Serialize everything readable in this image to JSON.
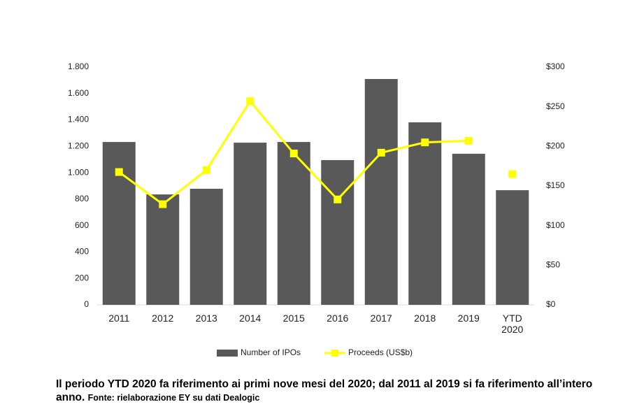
{
  "chart_data": {
    "type": "bar_line",
    "categories": [
      "2011",
      "2012",
      "2013",
      "2014",
      "2015",
      "2016",
      "2017",
      "2018",
      "2019",
      "YTD 2020"
    ],
    "series": [
      {
        "name": "Number of IPOs",
        "type": "bar",
        "color": "#595959",
        "values": [
          1233,
          836,
          879,
          1228,
          1233,
          1096,
          1710,
          1382,
          1144,
          868
        ]
      },
      {
        "name": "Proceeds (US$b)",
        "type": "line",
        "axis": "y2",
        "color": "#ffff00",
        "connect_last": false,
        "values": [
          167.6,
          127,
          170,
          257,
          191,
          133,
          192,
          205,
          207,
          165
        ]
      }
    ],
    "ylim": [
      0,
      1800
    ],
    "yticks": [
      0,
      200,
      400,
      600,
      800,
      {
        "value": 1000,
        "label": "1.000"
      },
      {
        "value": 1200,
        "label": "1.200"
      },
      {
        "value": 1400,
        "label": "1.400"
      },
      {
        "value": 1600,
        "label": "1.600"
      },
      {
        "value": 1800,
        "label": "1.800"
      }
    ],
    "y2lim": [
      0,
      300
    ],
    "y2ticks": [
      {
        "value": 0,
        "label": "$0"
      },
      {
        "value": 50,
        "label": "$50"
      },
      {
        "value": 100,
        "label": "$100"
      },
      {
        "value": 150,
        "label": "$150"
      },
      {
        "value": 200,
        "label": "$200"
      },
      {
        "value": 250,
        "label": "$250"
      },
      {
        "value": 300,
        "label": "$300"
      }
    ],
    "legend": "bottom",
    "note": "Il periodo YTD 2020 fa riferimento ai primi nove mesi del 2020; dal 2011 al 2019 si fa riferimento all’intero anno.",
    "source": "Fonte: rielaborazione EY su dati Dealogic"
  }
}
